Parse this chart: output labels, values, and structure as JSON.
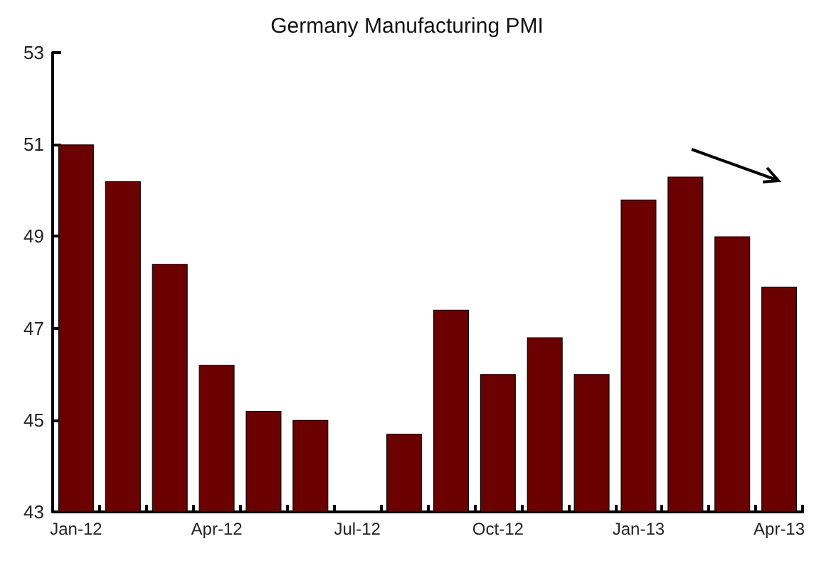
{
  "chart_data": {
    "type": "bar",
    "title": "Germany Manufacturing PMI",
    "categories": [
      "Jan-12",
      null,
      null,
      "Apr-12",
      null,
      null,
      "Jul-12",
      null,
      null,
      "Oct-12",
      null,
      null,
      "Jan-13",
      null,
      null,
      "Apr-13"
    ],
    "values": [
      51.0,
      50.2,
      48.4,
      46.2,
      45.2,
      45.0,
      43.0,
      44.7,
      47.4,
      46.0,
      46.8,
      46.0,
      49.8,
      50.3,
      49.0,
      47.9
    ],
    "color": "#6b0000",
    "ylim": [
      43,
      53
    ],
    "yticks": [
      43,
      45,
      47,
      49,
      51,
      53
    ],
    "grid": false
  }
}
